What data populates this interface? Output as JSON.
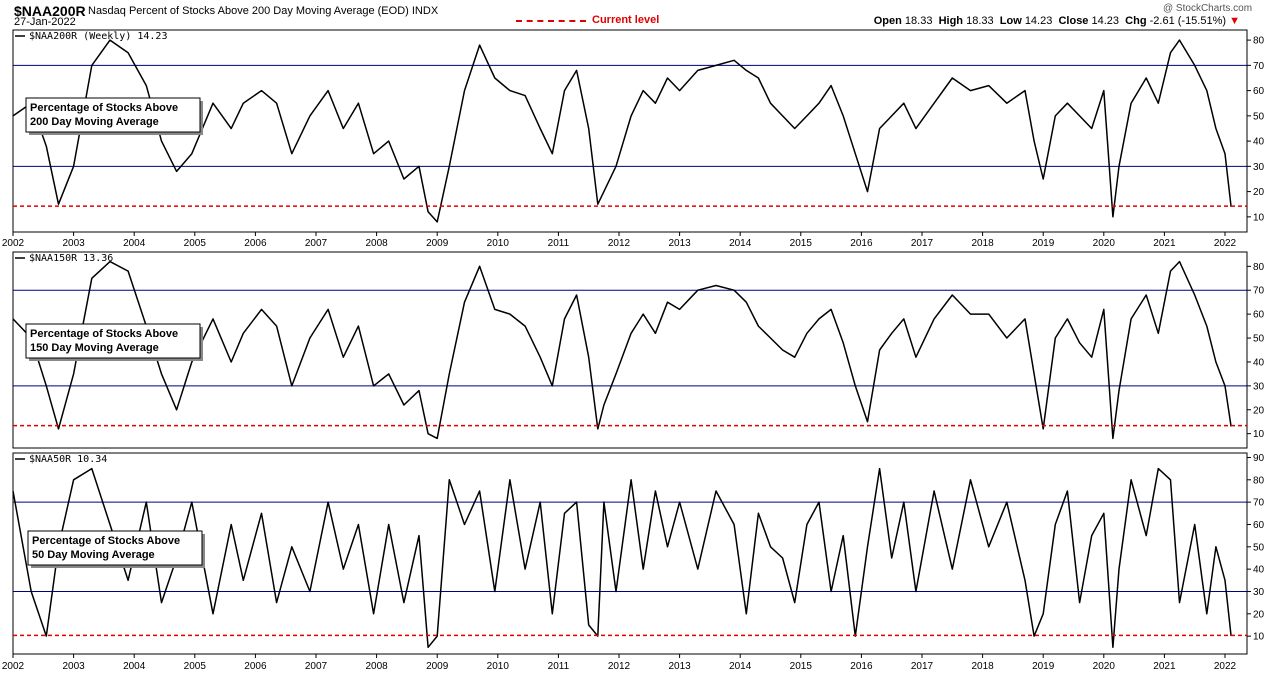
{
  "header": {
    "symbol": "$NAA200R",
    "description": "Nasdaq Percent of Stocks Above 200 Day Moving Average (EOD)",
    "exchange": "INDX",
    "date": "27-Jan-2022",
    "legend_label": "Current level",
    "credit": "@ StockCharts.com",
    "ohlc": {
      "open_label": "Open",
      "open": "18.33",
      "high_label": "High",
      "high": "18.33",
      "low_label": "Low",
      "low": "14.23",
      "close_label": "Close",
      "close": "14.23",
      "chg_label": "Chg",
      "chg": "-2.61 (-15.51%)",
      "chg_arrow": "▼"
    }
  },
  "colors": {
    "line": "#000000",
    "level": "#e00000",
    "grid": "#000080",
    "box": "#000000"
  },
  "chart_data": [
    {
      "type": "line",
      "panel_title": "$NAA200R (Weekly) 14.23",
      "box_label": [
        "Percentage of Stocks Above",
        "200 Day Moving Average"
      ],
      "x_ticks": [
        "2002",
        "2003",
        "2004",
        "2005",
        "2006",
        "2007",
        "2008",
        "2009",
        "2010",
        "2011",
        "2012",
        "2013",
        "2014",
        "2015",
        "2016",
        "2017",
        "2018",
        "2019",
        "2020",
        "2021",
        "2022"
      ],
      "y_ticks": [
        10,
        20,
        30,
        40,
        50,
        60,
        70,
        80
      ],
      "ylim": [
        4,
        84
      ],
      "reference_lines": [
        30,
        70
      ],
      "current_level": 14.23,
      "series": [
        {
          "x": [
            2002.0,
            2002.3,
            2002.55,
            2002.75,
            2003.0,
            2003.3,
            2003.6,
            2003.9,
            2004.2,
            2004.45,
            2004.7,
            2004.95,
            2005.3,
            2005.6,
            2005.8,
            2006.1,
            2006.35,
            2006.6,
            2006.9,
            2007.2,
            2007.45,
            2007.7,
            2007.95,
            2008.2,
            2008.45,
            2008.7,
            2008.85,
            2009.0,
            2009.2,
            2009.45,
            2009.7,
            2009.95,
            2010.2,
            2010.45,
            2010.7,
            2010.9,
            2011.1,
            2011.3,
            2011.5,
            2011.65,
            2011.75,
            2011.95,
            2012.2,
            2012.4,
            2012.6,
            2012.8,
            2013.0,
            2013.3,
            2013.6,
            2013.9,
            2014.1,
            2014.3,
            2014.5,
            2014.7,
            2014.9,
            2015.1,
            2015.3,
            2015.5,
            2015.7,
            2015.9,
            2016.1,
            2016.3,
            2016.5,
            2016.7,
            2016.9,
            2017.2,
            2017.5,
            2017.8,
            2018.1,
            2018.4,
            2018.7,
            2018.85,
            2019.0,
            2019.2,
            2019.4,
            2019.6,
            2019.8,
            2020.0,
            2020.15,
            2020.25,
            2020.45,
            2020.7,
            2020.9,
            2021.1,
            2021.25,
            2021.5,
            2021.7,
            2021.85,
            2022.0,
            2022.1
          ],
          "y": [
            50,
            55,
            38,
            15,
            30,
            70,
            80,
            75,
            62,
            40,
            28,
            35,
            55,
            45,
            55,
            60,
            55,
            35,
            50,
            60,
            45,
            55,
            35,
            40,
            25,
            30,
            12,
            8,
            30,
            60,
            78,
            65,
            60,
            58,
            45,
            35,
            60,
            68,
            45,
            15,
            20,
            30,
            50,
            60,
            55,
            65,
            60,
            68,
            70,
            72,
            68,
            65,
            55,
            50,
            45,
            50,
            55,
            62,
            50,
            35,
            20,
            45,
            50,
            55,
            45,
            55,
            65,
            60,
            62,
            55,
            60,
            40,
            25,
            50,
            55,
            50,
            45,
            60,
            10,
            30,
            55,
            65,
            55,
            75,
            80,
            70,
            60,
            45,
            35,
            14
          ]
        }
      ]
    },
    {
      "type": "line",
      "panel_title": "$NAA150R 13.36",
      "box_label": [
        "Percentage of Stocks Above",
        "150 Day Moving Average"
      ],
      "x_ticks": [],
      "y_ticks": [
        10,
        20,
        30,
        40,
        50,
        60,
        70,
        80
      ],
      "ylim": [
        4,
        86
      ],
      "reference_lines": [
        30,
        70
      ],
      "current_level": 13.36,
      "series": [
        {
          "x": [
            2002.0,
            2002.3,
            2002.55,
            2002.75,
            2003.0,
            2003.3,
            2003.6,
            2003.9,
            2004.2,
            2004.45,
            2004.7,
            2004.95,
            2005.3,
            2005.6,
            2005.8,
            2006.1,
            2006.35,
            2006.6,
            2006.9,
            2007.2,
            2007.45,
            2007.7,
            2007.95,
            2008.2,
            2008.45,
            2008.7,
            2008.85,
            2009.0,
            2009.2,
            2009.45,
            2009.7,
            2009.95,
            2010.2,
            2010.45,
            2010.7,
            2010.9,
            2011.1,
            2011.3,
            2011.5,
            2011.65,
            2011.75,
            2011.95,
            2012.2,
            2012.4,
            2012.6,
            2012.8,
            2013.0,
            2013.3,
            2013.6,
            2013.9,
            2014.1,
            2014.3,
            2014.5,
            2014.7,
            2014.9,
            2015.1,
            2015.3,
            2015.5,
            2015.7,
            2015.9,
            2016.1,
            2016.3,
            2016.5,
            2016.7,
            2016.9,
            2017.2,
            2017.5,
            2017.8,
            2018.1,
            2018.4,
            2018.7,
            2018.85,
            2019.0,
            2019.2,
            2019.4,
            2019.6,
            2019.8,
            2020.0,
            2020.15,
            2020.25,
            2020.45,
            2020.7,
            2020.9,
            2021.1,
            2021.25,
            2021.5,
            2021.7,
            2021.85,
            2022.0,
            2022.1
          ],
          "y": [
            58,
            50,
            30,
            12,
            35,
            75,
            82,
            78,
            55,
            35,
            20,
            40,
            58,
            40,
            52,
            62,
            55,
            30,
            50,
            62,
            42,
            55,
            30,
            35,
            22,
            28,
            10,
            8,
            35,
            65,
            80,
            62,
            60,
            55,
            42,
            30,
            58,
            68,
            42,
            12,
            22,
            35,
            52,
            60,
            52,
            65,
            62,
            70,
            72,
            70,
            65,
            55,
            50,
            45,
            42,
            52,
            58,
            62,
            48,
            30,
            15,
            45,
            52,
            58,
            42,
            58,
            68,
            60,
            60,
            50,
            58,
            35,
            12,
            50,
            58,
            48,
            42,
            62,
            8,
            28,
            58,
            68,
            52,
            78,
            82,
            68,
            55,
            40,
            30,
            13
          ]
        }
      ]
    },
    {
      "type": "line",
      "panel_title": "$NAA50R 10.34",
      "box_label": [
        "Percentage of Stocks Above",
        "50 Day Moving Average"
      ],
      "x_ticks": [
        "2002",
        "2003",
        "2004",
        "2005",
        "2006",
        "2007",
        "2008",
        "2009",
        "2010",
        "2011",
        "2012",
        "2013",
        "2014",
        "2015",
        "2016",
        "2017",
        "2018",
        "2019",
        "2020",
        "2021",
        "2022"
      ],
      "y_ticks": [
        10,
        20,
        30,
        40,
        50,
        60,
        70,
        80,
        90
      ],
      "ylim": [
        2,
        92
      ],
      "reference_lines": [
        30,
        70
      ],
      "current_level": 10.34,
      "series": [
        {
          "x": [
            2002.0,
            2002.3,
            2002.55,
            2002.75,
            2003.0,
            2003.3,
            2003.6,
            2003.9,
            2004.2,
            2004.45,
            2004.7,
            2004.95,
            2005.3,
            2005.6,
            2005.8,
            2006.1,
            2006.35,
            2006.6,
            2006.9,
            2007.2,
            2007.45,
            2007.7,
            2007.95,
            2008.2,
            2008.45,
            2008.7,
            2008.85,
            2009.0,
            2009.2,
            2009.45,
            2009.7,
            2009.95,
            2010.2,
            2010.45,
            2010.7,
            2010.9,
            2011.1,
            2011.3,
            2011.5,
            2011.65,
            2011.75,
            2011.95,
            2012.2,
            2012.4,
            2012.6,
            2012.8,
            2013.0,
            2013.3,
            2013.6,
            2013.9,
            2014.1,
            2014.3,
            2014.5,
            2014.7,
            2014.9,
            2015.1,
            2015.3,
            2015.5,
            2015.7,
            2015.9,
            2016.1,
            2016.3,
            2016.5,
            2016.7,
            2016.9,
            2017.2,
            2017.5,
            2017.8,
            2018.1,
            2018.4,
            2018.7,
            2018.85,
            2019.0,
            2019.2,
            2019.4,
            2019.6,
            2019.8,
            2020.0,
            2020.15,
            2020.25,
            2020.45,
            2020.7,
            2020.9,
            2021.1,
            2021.25,
            2021.5,
            2021.7,
            2021.85,
            2022.0,
            2022.1
          ],
          "y": [
            75,
            30,
            10,
            50,
            80,
            85,
            60,
            35,
            70,
            25,
            45,
            70,
            20,
            60,
            35,
            65,
            25,
            50,
            30,
            70,
            40,
            60,
            20,
            60,
            25,
            55,
            5,
            10,
            80,
            60,
            75,
            30,
            80,
            40,
            70,
            20,
            65,
            70,
            15,
            10,
            70,
            30,
            80,
            40,
            75,
            50,
            70,
            40,
            75,
            60,
            20,
            65,
            50,
            45,
            25,
            60,
            70,
            30,
            55,
            10,
            50,
            85,
            45,
            70,
            30,
            75,
            40,
            80,
            50,
            70,
            35,
            10,
            20,
            60,
            75,
            25,
            55,
            65,
            5,
            40,
            80,
            55,
            85,
            80,
            25,
            60,
            20,
            50,
            35,
            10
          ]
        }
      ]
    }
  ]
}
